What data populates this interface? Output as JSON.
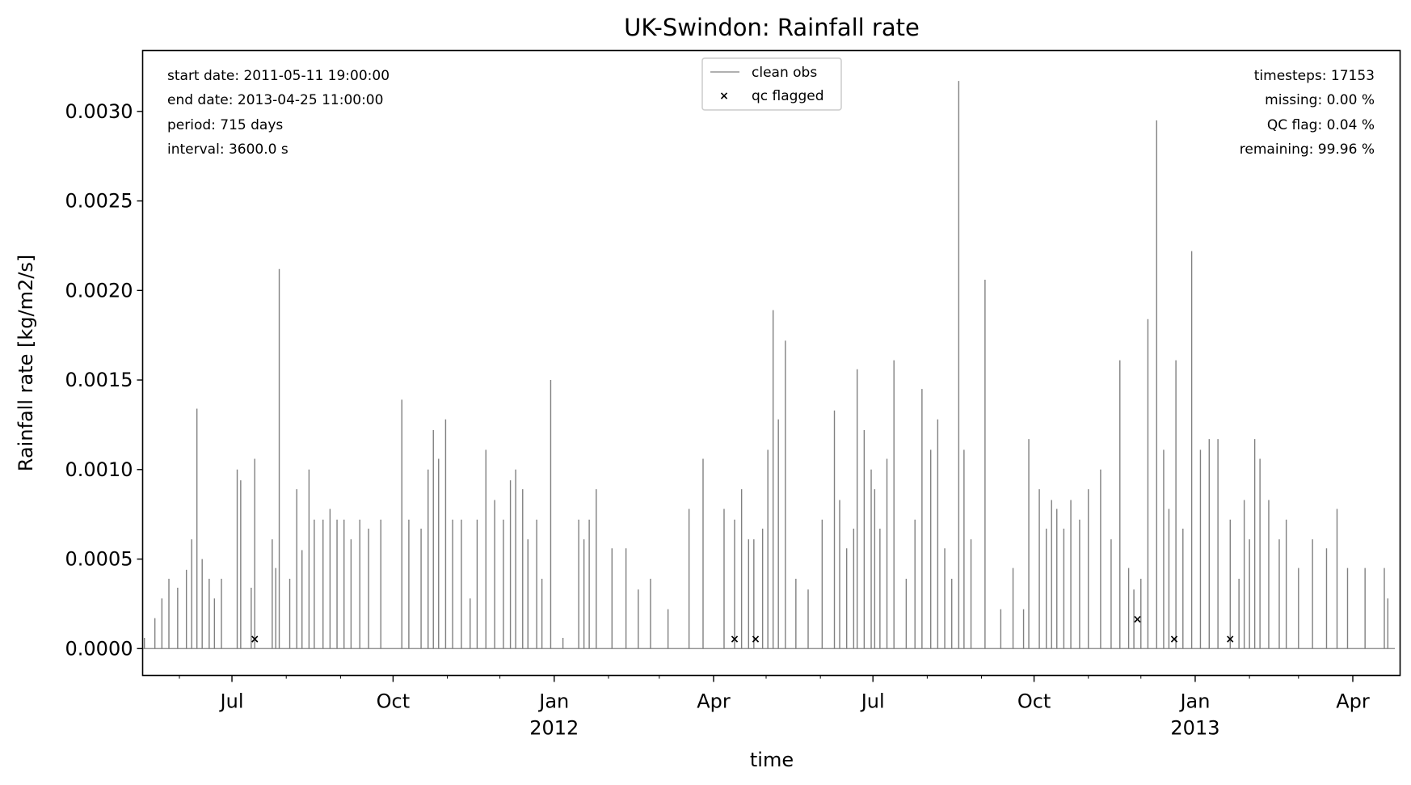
{
  "chart_data": {
    "type": "line",
    "title": "UK-Swindon: Rainfall rate",
    "xlabel": "time",
    "ylabel": "Rainfall rate [kg/m2/s]",
    "xlim": [
      "2011-05-11",
      "2013-04-28"
    ],
    "ylim": [
      -0.00015,
      0.00334
    ],
    "yticks": [
      0.0,
      0.0005,
      0.001,
      0.0015,
      0.002,
      0.0025,
      0.003
    ],
    "ytick_labels": [
      "0.0000",
      "0.0005",
      "0.0010",
      "0.0015",
      "0.0020",
      "0.0025",
      "0.0030"
    ],
    "xticks": [
      {
        "date": "2011-07-01",
        "label": "Jul",
        "year": ""
      },
      {
        "date": "2011-10-01",
        "label": "Oct",
        "year": ""
      },
      {
        "date": "2012-01-01",
        "label": "Jan",
        "year": "2012"
      },
      {
        "date": "2012-04-01",
        "label": "Apr",
        "year": ""
      },
      {
        "date": "2012-07-01",
        "label": "Jul",
        "year": ""
      },
      {
        "date": "2012-10-01",
        "label": "Oct",
        "year": ""
      },
      {
        "date": "2013-01-01",
        "label": "Jan",
        "year": "2013"
      },
      {
        "date": "2013-04-01",
        "label": "Apr",
        "year": ""
      }
    ],
    "minor_xticks": [
      "2011-06-01",
      "2011-08-01",
      "2011-09-01",
      "2011-11-01",
      "2011-12-01",
      "2012-02-01",
      "2012-03-01",
      "2012-05-01",
      "2012-06-01",
      "2012-08-01",
      "2012-09-01",
      "2012-11-01",
      "2012-12-01",
      "2013-02-01",
      "2013-03-01"
    ],
    "grid": false,
    "legend_position": "top-center",
    "series": [
      {
        "name": "clean obs",
        "color": "#808080",
        "x": [
          "2011-05-12",
          "2011-05-18",
          "2011-05-22",
          "2011-05-26",
          "2011-05-31",
          "2011-06-05",
          "2011-06-08",
          "2011-06-11",
          "2011-06-14",
          "2011-06-18",
          "2011-06-21",
          "2011-06-25",
          "2011-07-04",
          "2011-07-06",
          "2011-07-12",
          "2011-07-14",
          "2011-07-24",
          "2011-07-26",
          "2011-07-28",
          "2011-08-03",
          "2011-08-07",
          "2011-08-10",
          "2011-08-14",
          "2011-08-17",
          "2011-08-22",
          "2011-08-26",
          "2011-08-30",
          "2011-09-03",
          "2011-09-07",
          "2011-09-12",
          "2011-09-17",
          "2011-09-24",
          "2011-10-06",
          "2011-10-10",
          "2011-10-17",
          "2011-10-21",
          "2011-10-24",
          "2011-10-27",
          "2011-10-31",
          "2011-11-04",
          "2011-11-09",
          "2011-11-14",
          "2011-11-18",
          "2011-11-23",
          "2011-11-28",
          "2011-12-03",
          "2011-12-07",
          "2011-12-10",
          "2011-12-14",
          "2011-12-17",
          "2011-12-22",
          "2011-12-25",
          "2011-12-30",
          "2012-01-06",
          "2012-01-15",
          "2012-01-18",
          "2012-01-21",
          "2012-01-25",
          "2012-02-03",
          "2012-02-11",
          "2012-02-18",
          "2012-02-25",
          "2012-03-06",
          "2012-03-18",
          "2012-03-26",
          "2012-04-07",
          "2012-04-13",
          "2012-04-17",
          "2012-04-21",
          "2012-04-24",
          "2012-04-29",
          "2012-05-02",
          "2012-05-05",
          "2012-05-08",
          "2012-05-12",
          "2012-05-18",
          "2012-05-25",
          "2012-06-02",
          "2012-06-09",
          "2012-06-12",
          "2012-06-16",
          "2012-06-20",
          "2012-06-22",
          "2012-06-26",
          "2012-06-30",
          "2012-07-02",
          "2012-07-05",
          "2012-07-09",
          "2012-07-13",
          "2012-07-20",
          "2012-07-25",
          "2012-07-29",
          "2012-08-03",
          "2012-08-07",
          "2012-08-11",
          "2012-08-15",
          "2012-08-19",
          "2012-08-22",
          "2012-08-26",
          "2012-09-03",
          "2012-09-12",
          "2012-09-19",
          "2012-09-25",
          "2012-09-28",
          "2012-10-04",
          "2012-10-08",
          "2012-10-11",
          "2012-10-14",
          "2012-10-18",
          "2012-10-22",
          "2012-10-27",
          "2012-11-01",
          "2012-11-08",
          "2012-11-14",
          "2012-11-19",
          "2012-11-24",
          "2012-11-27",
          "2012-12-01",
          "2012-12-05",
          "2012-12-10",
          "2012-12-14",
          "2012-12-17",
          "2012-12-21",
          "2012-12-25",
          "2012-12-30",
          "2013-01-04",
          "2013-01-09",
          "2013-01-14",
          "2013-01-21",
          "2013-01-26",
          "2013-01-29",
          "2013-02-01",
          "2013-02-04",
          "2013-02-07",
          "2013-02-12",
          "2013-02-18",
          "2013-02-22",
          "2013-03-01",
          "2013-03-09",
          "2013-03-17",
          "2013-03-23",
          "2013-03-29",
          "2013-04-08",
          "2013-04-19",
          "2013-04-21"
        ],
        "y": [
          6e-05,
          0.00017,
          0.00028,
          0.00039,
          0.00034,
          0.00044,
          0.00061,
          0.00134,
          0.0005,
          0.00039,
          0.00028,
          0.00039,
          0.001,
          0.00094,
          0.00034,
          0.00106,
          0.00061,
          0.00045,
          0.00212,
          0.00039,
          0.00089,
          0.00055,
          0.001,
          0.00072,
          0.00072,
          0.00078,
          0.00072,
          0.00072,
          0.00061,
          0.00072,
          0.00067,
          0.00072,
          0.00139,
          0.00072,
          0.00067,
          0.001,
          0.00122,
          0.00106,
          0.00128,
          0.00072,
          0.00072,
          0.00028,
          0.00072,
          0.00111,
          0.00083,
          0.00072,
          0.00094,
          0.001,
          0.00089,
          0.00061,
          0.00072,
          0.00039,
          0.0015,
          6e-05,
          0.00072,
          0.00061,
          0.00072,
          0.00089,
          0.00056,
          0.00056,
          0.00033,
          0.00039,
          0.00022,
          0.00078,
          0.00106,
          0.00078,
          0.00072,
          0.00089,
          0.00061,
          0.00061,
          0.00067,
          0.00111,
          0.00189,
          0.00128,
          0.00172,
          0.00039,
          0.00033,
          0.00072,
          0.00133,
          0.00083,
          0.00056,
          0.00067,
          0.00156,
          0.00122,
          0.001,
          0.00089,
          0.00067,
          0.00106,
          0.00161,
          0.00039,
          0.00072,
          0.00145,
          0.00111,
          0.00128,
          0.00056,
          0.00039,
          0.00317,
          0.00111,
          0.00061,
          0.00206,
          0.00022,
          0.00045,
          0.00022,
          0.00117,
          0.00089,
          0.00067,
          0.00083,
          0.00078,
          0.00067,
          0.00083,
          0.00072,
          0.00089,
          0.001,
          0.00061,
          0.00161,
          0.00045,
          0.00033,
          0.00039,
          0.00184,
          0.00295,
          0.00111,
          0.00078,
          0.00161,
          0.00067,
          0.00222,
          0.00111,
          0.00117,
          0.00117,
          0.00072,
          0.00039,
          0.00083,
          0.00061,
          0.00117,
          0.00106,
          0.00083,
          0.00061,
          0.00072,
          0.00045,
          0.00061,
          0.00056,
          0.00078,
          0.00045,
          0.00045,
          0.00045,
          0.00028
        ]
      },
      {
        "name": "qc flagged",
        "color": "#ff0000",
        "x": [
          "2011-07-14",
          "2012-04-13",
          "2012-04-25",
          "2012-11-29",
          "2012-12-20",
          "2013-01-21"
        ],
        "y": [
          5.6e-05,
          5.6e-05,
          5.6e-05,
          0.000167,
          5.6e-05,
          5.6e-05
        ]
      }
    ]
  },
  "info_left": [
    "start date: 2011-05-11 19:00:00",
    "end date: 2013-04-25 11:00:00",
    "period: 715 days",
    "interval: 3600.0 s"
  ],
  "info_right": [
    "timesteps: 17153",
    "missing: 0.00 %",
    "QC flag: 0.04 %",
    "remaining: 99.96 %"
  ]
}
